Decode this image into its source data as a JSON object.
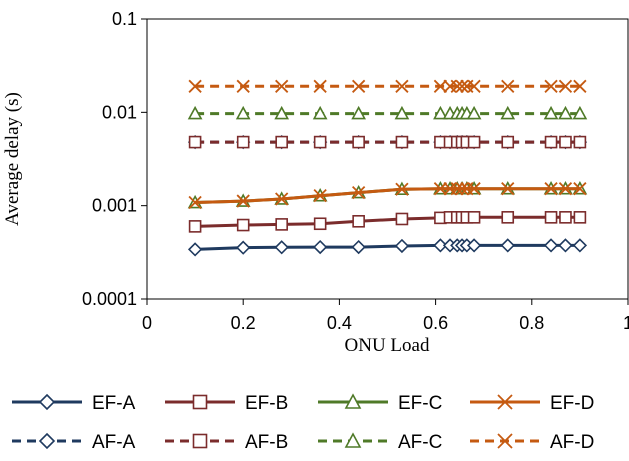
{
  "chart_data": {
    "type": "line",
    "title": "",
    "xlabel": "ONU Load",
    "ylabel": "Average delay (s)",
    "xlim": [
      0,
      1
    ],
    "ylim": [
      0.0001,
      0.1
    ],
    "y_scale": "log",
    "x_ticks": [
      "0",
      "0.2",
      "0.4",
      "0.6",
      "0.8",
      "1"
    ],
    "y_ticks": [
      "0.0001",
      "0.001",
      "0.01",
      "0.1"
    ],
    "grid": false,
    "legend_position": "bottom",
    "x": [
      0.1,
      0.2,
      0.28,
      0.36,
      0.44,
      0.53,
      0.61,
      0.63,
      0.645,
      0.655,
      0.665,
      0.68,
      0.75,
      0.84,
      0.87,
      0.9
    ],
    "series": [
      {
        "name": "EF-A",
        "color": "#1F3A5F",
        "line": "solid",
        "marker": "diamond",
        "values": [
          0.00034,
          0.000355,
          0.000358,
          0.00036,
          0.00036,
          0.00037,
          0.000375,
          0.000375,
          0.000375,
          0.000375,
          0.000375,
          0.000375,
          0.000375,
          0.000375,
          0.000375,
          0.000375
        ]
      },
      {
        "name": "EF-B",
        "color": "#7B2C2C",
        "line": "solid",
        "marker": "square",
        "values": [
          0.0006,
          0.00062,
          0.00063,
          0.00064,
          0.00068,
          0.00072,
          0.00074,
          0.00075,
          0.00075,
          0.00075,
          0.00075,
          0.00075,
          0.00075,
          0.00075,
          0.00075,
          0.00075
        ]
      },
      {
        "name": "EF-C",
        "color": "#4F7A28",
        "line": "solid",
        "marker": "triangle",
        "values": [
          0.00108,
          0.00112,
          0.00118,
          0.00128,
          0.00138,
          0.0015,
          0.00152,
          0.00152,
          0.00152,
          0.00152,
          0.00152,
          0.00152,
          0.00152,
          0.00152,
          0.00152,
          0.00152
        ]
      },
      {
        "name": "EF-D",
        "color": "#C55A11",
        "line": "solid",
        "marker": "x",
        "values": [
          0.00108,
          0.00112,
          0.00118,
          0.00128,
          0.00138,
          0.0015,
          0.00152,
          0.00152,
          0.00152,
          0.00152,
          0.00152,
          0.00152,
          0.00152,
          0.00152,
          0.00152,
          0.00152
        ]
      },
      {
        "name": "AF-A",
        "color": "#1F3A5F",
        "line": "dashed",
        "marker": "diamond",
        "values": [
          0.0048,
          0.0048,
          0.0048,
          0.0048,
          0.0048,
          0.0048,
          0.0048,
          0.0048,
          0.0048,
          0.0048,
          0.0048,
          0.0048,
          0.0048,
          0.0048,
          0.0048,
          0.0048
        ]
      },
      {
        "name": "AF-B",
        "color": "#7B2C2C",
        "line": "dashed",
        "marker": "square",
        "values": [
          0.0048,
          0.0048,
          0.0048,
          0.0048,
          0.0048,
          0.0048,
          0.0048,
          0.0048,
          0.0048,
          0.0048,
          0.0048,
          0.0048,
          0.0048,
          0.0048,
          0.0048,
          0.0048
        ]
      },
      {
        "name": "AF-C",
        "color": "#4F7A28",
        "line": "dashed",
        "marker": "triangle",
        "values": [
          0.0097,
          0.0097,
          0.0097,
          0.0097,
          0.0097,
          0.0097,
          0.0097,
          0.0097,
          0.0097,
          0.0097,
          0.0097,
          0.0097,
          0.0097,
          0.0097,
          0.0097,
          0.0097
        ]
      },
      {
        "name": "AF-D",
        "color": "#C55A11",
        "line": "dashed",
        "marker": "x",
        "values": [
          0.019,
          0.019,
          0.019,
          0.019,
          0.019,
          0.019,
          0.019,
          0.019,
          0.019,
          0.019,
          0.019,
          0.019,
          0.019,
          0.019,
          0.019,
          0.019
        ]
      }
    ]
  }
}
